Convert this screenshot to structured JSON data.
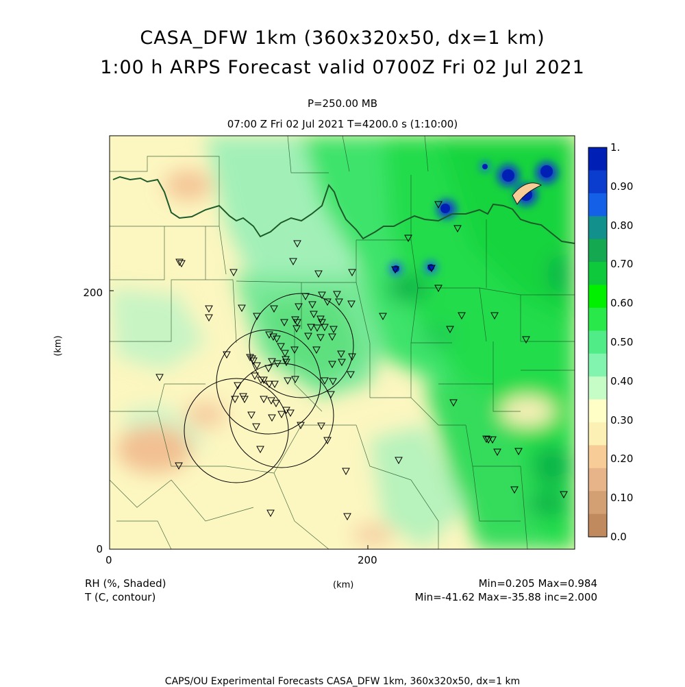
{
  "header": {
    "title_line1": "CASA_DFW 1km (360x320x50, dx=1 km)",
    "title_line2": "1:00 h ARPS Forecast valid 0700Z Fri 02 Jul 2021",
    "level": "P=250.00 MB",
    "time_line": "07:00 Z Fri 02 Jul 2021    T=4200.0 s (1:10:00)"
  },
  "axes": {
    "x_unit": "(km)",
    "y_unit": "(km)",
    "x_ticks": [
      "0",
      "200"
    ],
    "y_ticks": [
      "0",
      "200"
    ]
  },
  "colorbar": {
    "labels": [
      "1.",
      "0.90",
      "0.80",
      "0.70",
      "0.60",
      "0.50",
      "0.40",
      "0.30",
      "0.20",
      "0.10",
      "0.0"
    ],
    "colors": [
      "#001fb4",
      "#0a3ccd",
      "#1460e6",
      "#12908c",
      "#14a850",
      "#0ec93c",
      "#00f000",
      "#28e84a",
      "#50ec88",
      "#82f4b0",
      "#c6fcc6",
      "#fefec6",
      "#fcf0b4",
      "#f8cc96",
      "#e6b488",
      "#d2a073",
      "#c08a5e"
    ]
  },
  "legend": {
    "shaded_label": "RH (%, Shaded)",
    "contour_label": "T (C, contour)",
    "shaded_stats": "Min=0.205 Max=0.984",
    "contour_stats": "Min=-41.62 Max=-35.88 inc=2.000"
  },
  "footer": {
    "credit": "CAPS/OU Experimental Forecasts   CASA_DFW 1km, 360x320x50, dx=1 km"
  }
}
